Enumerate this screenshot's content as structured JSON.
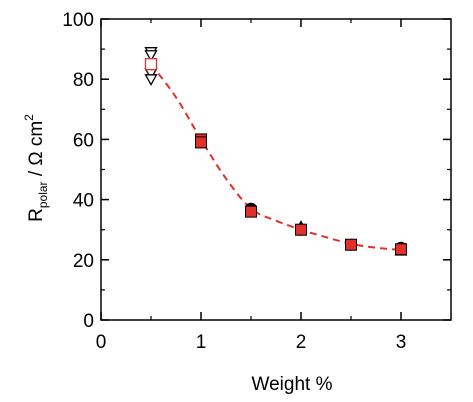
{
  "chart_data": {
    "type": "scatter",
    "title": "",
    "xlabel": "Weight %",
    "ylabel": {
      "main": "R",
      "subscript": "polar",
      "unit": " / Ω cm",
      "superscript": "2"
    },
    "xlim": [
      0,
      3.5
    ],
    "ylim": [
      0,
      100
    ],
    "x_ticks": [
      "0",
      "1",
      "2",
      "3"
    ],
    "y_ticks": [
      "0",
      "20",
      "40",
      "60",
      "80",
      "100"
    ],
    "grid": false,
    "legend": "none",
    "series": [
      {
        "marker": "triangle-down-open",
        "color": "#000000",
        "points": [
          [
            0.5,
            89
          ],
          [
            0.5,
            88
          ],
          [
            0.5,
            82
          ],
          [
            0.5,
            80
          ]
        ]
      },
      {
        "marker": "square-open",
        "color": "#e0302a",
        "points": [
          [
            0.5,
            85
          ]
        ]
      },
      {
        "marker": "circle",
        "color": "#000000",
        "points": [
          [
            1.0,
            59
          ],
          [
            1.5,
            37
          ],
          [
            2.0,
            30
          ],
          [
            2.5,
            25
          ],
          [
            3.0,
            24
          ]
        ]
      },
      {
        "marker": "triangle-up",
        "color": "#000000",
        "points": [
          [
            2.0,
            31
          ],
          [
            3.0,
            23
          ]
        ]
      },
      {
        "marker": "square",
        "color": "#e0302a",
        "points": [
          [
            1.0,
            60
          ],
          [
            1.0,
            59
          ],
          [
            1.5,
            36
          ],
          [
            2.0,
            30
          ],
          [
            2.5,
            25
          ],
          [
            3.0,
            23.5
          ]
        ]
      }
    ],
    "fit_line": {
      "style": "dashed",
      "color": "#e0302a",
      "points": [
        [
          0.5,
          85
        ],
        [
          0.75,
          74
        ],
        [
          1.0,
          60
        ],
        [
          1.25,
          47
        ],
        [
          1.5,
          37
        ],
        [
          1.75,
          33
        ],
        [
          2.0,
          30
        ],
        [
          2.25,
          27.5
        ],
        [
          2.5,
          25.3
        ],
        [
          2.75,
          24
        ],
        [
          3.0,
          23.3
        ]
      ]
    }
  }
}
